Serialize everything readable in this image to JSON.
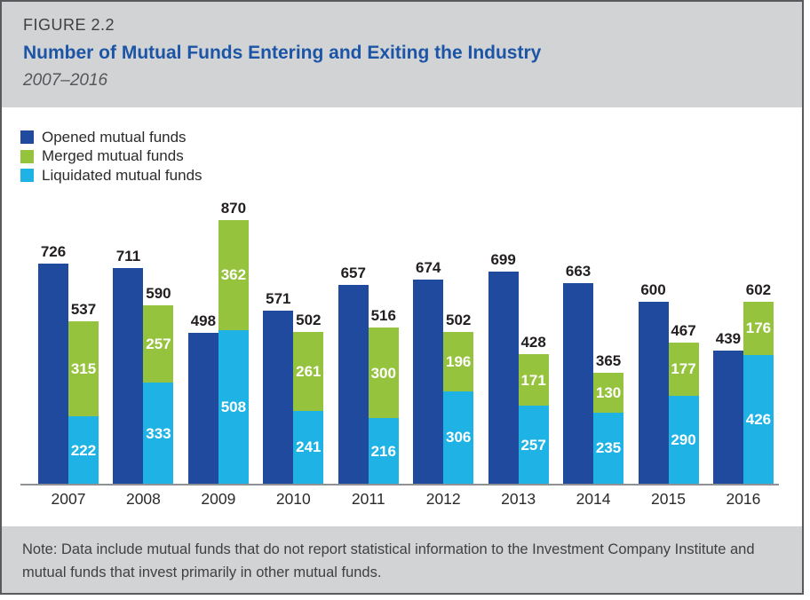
{
  "header": {
    "figure_label": "FIGURE 2.2",
    "title": "Number of Mutual Funds Entering and Exiting the Industry",
    "subtitle": "2007–2016"
  },
  "footer": {
    "note": "Note: Data include mutual funds that do not report statistical information to the Investment Company Institute and mutual funds that invest primarily in other mutual funds."
  },
  "colors": {
    "opened": "#1f4a9e",
    "merged": "#96c33d",
    "liquidated": "#1fb2e5",
    "title_blue": "#1d55a6",
    "header_bg": "#d1d3d4",
    "axis_line": "#8f9194",
    "value_label": "#231f20"
  },
  "chart_data": {
    "type": "bar",
    "title": "Number of Mutual Funds Entering and Exiting the Industry",
    "subtitle": "2007–2016",
    "categories": [
      "2007",
      "2008",
      "2009",
      "2010",
      "2011",
      "2012",
      "2013",
      "2014",
      "2015",
      "2016"
    ],
    "series": [
      {
        "name": "Opened mutual funds",
        "color_key": "opened",
        "role": "standalone-bar",
        "values": [
          726,
          711,
          498,
          571,
          657,
          674,
          699,
          663,
          600,
          439
        ]
      },
      {
        "name": "Merged mutual funds",
        "color_key": "merged",
        "role": "stack-top",
        "values": [
          315,
          257,
          362,
          261,
          300,
          196,
          171,
          130,
          177,
          176
        ]
      },
      {
        "name": "Liquidated mutual funds",
        "color_key": "liquidated",
        "role": "stack-bottom",
        "values": [
          222,
          333,
          508,
          241,
          216,
          306,
          257,
          235,
          290,
          426
        ]
      }
    ],
    "stacked_totals": [
      537,
      590,
      870,
      502,
      516,
      502,
      428,
      365,
      467,
      602
    ],
    "ylim": [
      0,
      880
    ],
    "grid": false,
    "legend_position": "top-left",
    "data_labels": "totals above bars in black, segment values inside bars in white"
  }
}
